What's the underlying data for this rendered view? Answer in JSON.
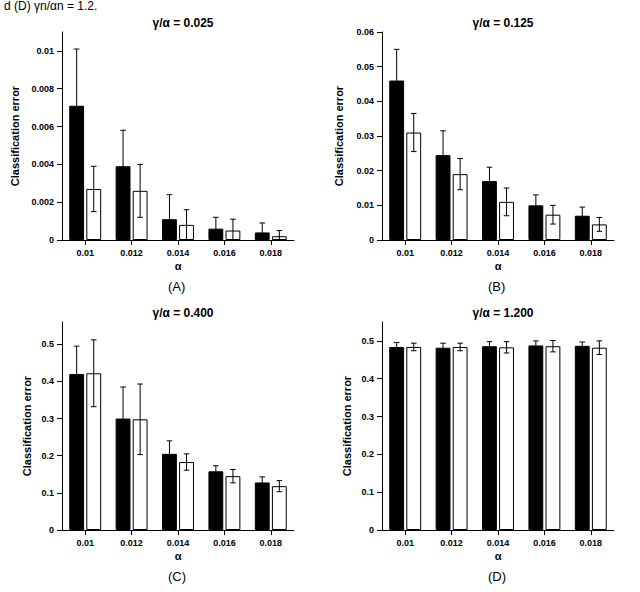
{
  "caption": "d (D) γn/αn = 1.2.",
  "chart_data": [
    {
      "type": "bar",
      "title": "γ/α = 0.025",
      "panel_label": "(A)",
      "x_label": "α",
      "y_label": "Classification error",
      "categories": [
        "0.01",
        "0.012",
        "0.014",
        "0.016",
        "0.018"
      ],
      "series": [
        {
          "color": "#000000",
          "values": [
            0.0071,
            0.0039,
            0.0011,
            0.0006,
            0.0004
          ],
          "errors": [
            0.003,
            0.0019,
            0.0013,
            0.0006,
            0.0005
          ]
        },
        {
          "color": "#ffffff",
          "values": [
            0.0027,
            0.0026,
            0.0008,
            0.0005,
            0.0002
          ],
          "errors": [
            0.0012,
            0.0014,
            0.0008,
            0.0006,
            0.0003
          ]
        }
      ],
      "ylim": [
        0,
        0.011
      ],
      "yticks": [
        0,
        0.002,
        0.004,
        0.006,
        0.008,
        0.01
      ]
    },
    {
      "type": "bar",
      "title": "γ/α = 0.125",
      "panel_label": "(B)",
      "x_label": "α",
      "y_label": "Classification error",
      "categories": [
        "0.01",
        "0.012",
        "0.014",
        "0.016",
        "0.018"
      ],
      "series": [
        {
          "color": "#000000",
          "values": [
            0.046,
            0.0245,
            0.017,
            0.01,
            0.007
          ],
          "errors": [
            0.009,
            0.007,
            0.004,
            0.003,
            0.0025
          ]
        },
        {
          "color": "#ffffff",
          "values": [
            0.031,
            0.019,
            0.011,
            0.0073,
            0.0045
          ],
          "errors": [
            0.0055,
            0.0045,
            0.004,
            0.0027,
            0.002
          ]
        }
      ],
      "ylim": [
        0,
        0.06
      ],
      "yticks": [
        0,
        0.01,
        0.02,
        0.03,
        0.04,
        0.05,
        0.06
      ]
    },
    {
      "type": "bar",
      "title": "γ/α = 0.400",
      "panel_label": "(C)",
      "x_label": "α",
      "y_label": "Classification error",
      "categories": [
        "0.01",
        "0.012",
        "0.014",
        "0.016",
        "0.018"
      ],
      "series": [
        {
          "color": "#000000",
          "values": [
            0.42,
            0.3,
            0.205,
            0.158,
            0.128
          ],
          "errors": [
            0.075,
            0.085,
            0.035,
            0.015,
            0.015
          ]
        },
        {
          "color": "#ffffff",
          "values": [
            0.422,
            0.298,
            0.183,
            0.145,
            0.118
          ],
          "errors": [
            0.09,
            0.095,
            0.022,
            0.018,
            0.015
          ]
        }
      ],
      "ylim": [
        0,
        0.56
      ],
      "yticks": [
        0,
        0.1,
        0.2,
        0.3,
        0.4,
        0.5
      ]
    },
    {
      "type": "bar",
      "title": "γ/α = 1.200",
      "panel_label": "(D)",
      "x_label": "α",
      "y_label": "Classification error",
      "categories": [
        "0.01",
        "0.012",
        "0.014",
        "0.016",
        "0.018"
      ],
      "series": [
        {
          "color": "#000000",
          "values": [
            0.484,
            0.482,
            0.486,
            0.488,
            0.487
          ],
          "errors": [
            0.012,
            0.012,
            0.012,
            0.012,
            0.01
          ]
        },
        {
          "color": "#ffffff",
          "values": [
            0.484,
            0.484,
            0.483,
            0.486,
            0.482
          ],
          "errors": [
            0.01,
            0.01,
            0.015,
            0.015,
            0.018
          ]
        }
      ],
      "ylim": [
        0,
        0.55
      ],
      "yticks": [
        0,
        0.1,
        0.2,
        0.3,
        0.4,
        0.5
      ]
    }
  ]
}
